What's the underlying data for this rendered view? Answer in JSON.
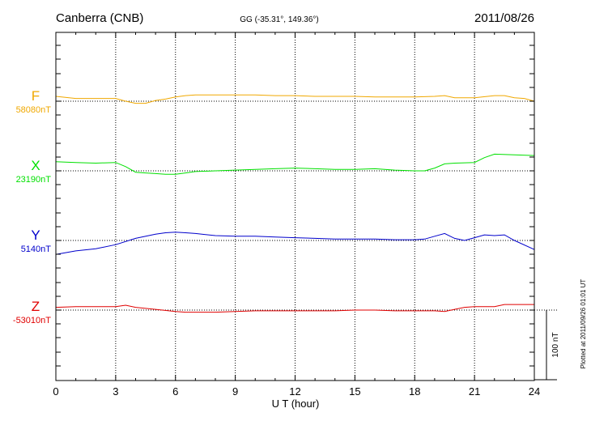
{
  "header": {
    "station": "Canberra (CNB)",
    "coords": "GG (-35.31°, 149.36°)",
    "date": "2011/08/26"
  },
  "footer_note": "Plotted at 2011/09/26 01:01 UT",
  "chart_data": {
    "type": "line",
    "title": "",
    "xlabel": "U T (hour)",
    "xlim": [
      0,
      24
    ],
    "xticks": [
      0,
      3,
      6,
      9,
      12,
      15,
      18,
      21,
      24
    ],
    "grid": true,
    "scale_bar": {
      "value_nT": 100,
      "label": "100 nT"
    },
    "colors": {
      "F": "#f0a800",
      "X": "#00e000",
      "Y": "#0000cc",
      "Z": "#e00000"
    },
    "series": [
      {
        "name": "F",
        "baseline_label": "58080nT",
        "baseline": 58080,
        "x": [
          0,
          1,
          2,
          3,
          3.5,
          4,
          4.5,
          5,
          5.5,
          6,
          6.5,
          7,
          8,
          9,
          10,
          11,
          12,
          13,
          14,
          15,
          16,
          17,
          18,
          19,
          19.5,
          20,
          21,
          22,
          22.5,
          23,
          23.5,
          24
        ],
        "y": [
          58087,
          58084,
          58084,
          58084,
          58080,
          58077,
          58077,
          58081,
          58083,
          58086,
          58088,
          58089,
          58089,
          58089,
          58089,
          58088,
          58088,
          58087,
          58087,
          58087,
          58086,
          58086,
          58086,
          58087,
          58088,
          58085,
          58085,
          58088,
          58088,
          58085,
          58084,
          58080
        ]
      },
      {
        "name": "X",
        "baseline_label": "23190nT",
        "baseline": 23190,
        "x": [
          0,
          1,
          2,
          3,
          3.5,
          4,
          4.5,
          5,
          5.5,
          6,
          6.5,
          7,
          8,
          9,
          10,
          11,
          12,
          13,
          14,
          15,
          16,
          17,
          18,
          18.5,
          19,
          19.5,
          20,
          21,
          21.5,
          22,
          23,
          24
        ],
        "y": [
          23203,
          23202,
          23201,
          23202,
          23196,
          23188,
          23187,
          23186,
          23185,
          23185,
          23187,
          23189,
          23190,
          23191,
          23192,
          23193,
          23194,
          23193,
          23192,
          23192,
          23193,
          23191,
          23190,
          23190,
          23194,
          23200,
          23201,
          23202,
          23209,
          23214,
          23213,
          23212
        ]
      },
      {
        "name": "Y",
        "baseline_label": "5140nT",
        "baseline": 5140,
        "x": [
          0,
          1,
          2,
          3,
          4,
          5,
          5.5,
          6,
          6.5,
          7,
          8,
          9,
          10,
          11,
          12,
          13,
          14,
          15,
          16,
          17,
          18,
          18.5,
          19,
          19.5,
          20,
          20.5,
          21,
          21.5,
          22,
          22.5,
          23,
          24
        ],
        "y": [
          5120,
          5125,
          5128,
          5134,
          5143,
          5149,
          5151,
          5152,
          5151,
          5150,
          5147,
          5146,
          5146,
          5145,
          5144,
          5143,
          5142,
          5142,
          5142,
          5141,
          5141,
          5142,
          5146,
          5150,
          5143,
          5140,
          5144,
          5148,
          5147,
          5148,
          5140,
          5127
        ]
      },
      {
        "name": "Z",
        "baseline_label": "-53010nT",
        "baseline": -53010,
        "x": [
          0,
          1,
          2,
          3,
          3.5,
          4,
          5,
          6,
          6.5,
          7,
          8,
          9,
          10,
          11,
          12,
          13,
          14,
          15,
          16,
          17,
          18,
          19,
          19.5,
          20,
          20.5,
          21,
          22,
          22.5,
          23,
          24
        ],
        "y": [
          -53006,
          -53005,
          -53005,
          -53005,
          -53003,
          -53006,
          -53009,
          -53012,
          -53013,
          -53013,
          -53013,
          -53012,
          -53011,
          -53011,
          -53011,
          -53011,
          -53011,
          -53010,
          -53010,
          -53011,
          -53011,
          -53011,
          -53012,
          -53009,
          -53006,
          -53005,
          -53005,
          -53002,
          -53002,
          -53002
        ]
      }
    ]
  }
}
